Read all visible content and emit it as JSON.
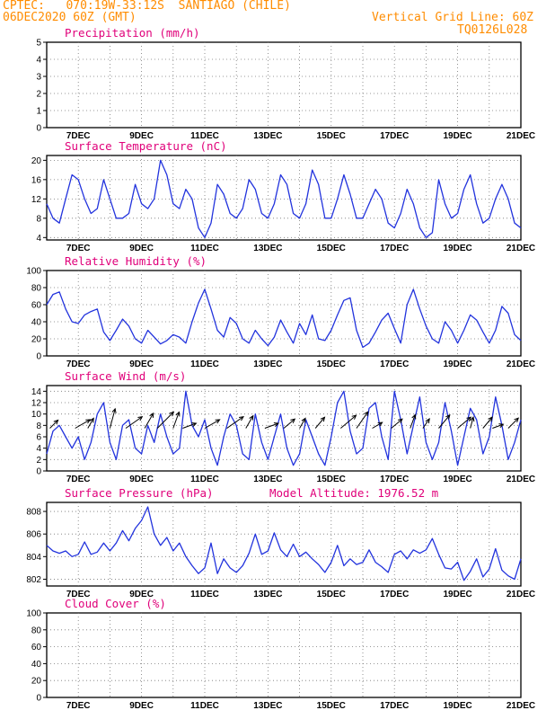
{
  "header": {
    "line1_left": "CPTEC:   070:19W-33:12S  SANTIAGO (CHILE)",
    "line2_left": "06DEC2020 60Z (GMT)",
    "line1_right": "Vertical Grid Line: 60Z",
    "line2_right": "TQ0126L028",
    "model_altitude": "Model Altitude: 1976.52 m"
  },
  "colors": {
    "line": "#2233dd",
    "header": "#ff8c00",
    "title": "#e0007a",
    "wind": "#000000"
  },
  "x_axis": {
    "start": "06DEC2020 00Z",
    "end": "21DEC2020 00Z",
    "tick_labels": [
      "7DEC",
      "9DEC",
      "11DEC",
      "13DEC",
      "15DEC",
      "17DEC",
      "19DEC",
      "21DEC"
    ]
  },
  "chart_data": [
    {
      "type": "line",
      "title": "Precipitation (mm/h)",
      "ylim": [
        0,
        5
      ],
      "yticks": [
        0,
        1,
        2,
        3,
        4,
        5
      ],
      "series": []
    },
    {
      "type": "line",
      "title": "Surface Temperature (nC)",
      "ylim": [
        3.5,
        21
      ],
      "yticks": [
        4,
        8,
        12,
        16,
        20
      ],
      "series": [
        {
          "x": [
            6.0,
            6.2,
            6.4,
            6.6,
            6.8,
            7.0,
            7.2,
            7.4,
            7.6,
            7.8,
            8.0,
            8.2,
            8.4,
            8.6,
            8.8,
            9.0,
            9.2,
            9.4,
            9.6,
            9.8,
            10.0,
            10.2,
            10.4,
            10.6,
            10.8,
            11.0,
            11.2,
            11.4,
            11.6,
            11.8,
            12.0,
            12.2,
            12.4,
            12.6,
            12.8,
            13.0,
            13.2,
            13.4,
            13.6,
            13.8,
            14.0,
            14.2,
            14.4,
            14.6,
            14.8,
            15.0,
            15.2,
            15.4,
            15.6,
            15.8,
            16.0,
            16.2,
            16.4,
            16.6,
            16.8,
            17.0,
            17.2,
            17.4,
            17.6,
            17.8,
            18.0,
            18.2,
            18.4,
            18.6,
            18.8,
            19.0,
            19.2,
            19.4,
            19.6,
            19.8,
            20.0,
            20.2,
            20.4,
            20.6,
            20.8,
            21.0
          ],
          "values": [
            11,
            8,
            7,
            12,
            17,
            16,
            12,
            9,
            10,
            16,
            12,
            8,
            8,
            9,
            15,
            11,
            10,
            12,
            20,
            17,
            11,
            10,
            14,
            12,
            6,
            4,
            7,
            15,
            13,
            9,
            8,
            10,
            16,
            14,
            9,
            8,
            11,
            17,
            15,
            9,
            8,
            11,
            18,
            15,
            8,
            8,
            12,
            17,
            13,
            8,
            8,
            11,
            14,
            12,
            7,
            6,
            9,
            14,
            11,
            6,
            4,
            5,
            16,
            11,
            8,
            9,
            14,
            17,
            11,
            7,
            8,
            12,
            15,
            12,
            7,
            6
          ]
        }
      ]
    },
    {
      "type": "line",
      "title": "Relative Humidity (%)",
      "ylim": [
        0,
        100
      ],
      "yticks": [
        0,
        20,
        40,
        60,
        80,
        100
      ],
      "series": [
        {
          "x": [
            6.0,
            6.2,
            6.4,
            6.6,
            6.8,
            7.0,
            7.2,
            7.4,
            7.6,
            7.8,
            8.0,
            8.2,
            8.4,
            8.6,
            8.8,
            9.0,
            9.2,
            9.4,
            9.6,
            9.8,
            10.0,
            10.2,
            10.4,
            10.6,
            10.8,
            11.0,
            11.2,
            11.4,
            11.6,
            11.8,
            12.0,
            12.2,
            12.4,
            12.6,
            12.8,
            13.0,
            13.2,
            13.4,
            13.6,
            13.8,
            14.0,
            14.2,
            14.4,
            14.6,
            14.8,
            15.0,
            15.2,
            15.4,
            15.6,
            15.8,
            16.0,
            16.2,
            16.4,
            16.6,
            16.8,
            17.0,
            17.2,
            17.4,
            17.6,
            17.8,
            18.0,
            18.2,
            18.4,
            18.6,
            18.8,
            19.0,
            19.2,
            19.4,
            19.6,
            19.8,
            20.0,
            20.2,
            20.4,
            20.6,
            20.8,
            21.0
          ],
          "values": [
            60,
            72,
            75,
            55,
            40,
            38,
            48,
            52,
            55,
            28,
            18,
            30,
            43,
            35,
            20,
            15,
            30,
            22,
            14,
            18,
            25,
            22,
            15,
            40,
            62,
            78,
            55,
            30,
            22,
            45,
            38,
            20,
            15,
            30,
            20,
            12,
            22,
            42,
            28,
            15,
            38,
            25,
            48,
            20,
            18,
            30,
            48,
            65,
            68,
            30,
            10,
            15,
            28,
            42,
            50,
            32,
            15,
            60,
            78,
            55,
            35,
            20,
            15,
            40,
            30,
            15,
            30,
            48,
            42,
            28,
            15,
            30,
            58,
            50,
            25,
            18
          ]
        }
      ]
    },
    {
      "type": "line",
      "title": "Surface Wind (m/s)",
      "ylim": [
        0,
        15
      ],
      "yticks": [
        0,
        2,
        4,
        6,
        8,
        10,
        12,
        14
      ],
      "series": [
        {
          "x": [
            6.0,
            6.2,
            6.4,
            6.6,
            6.8,
            7.0,
            7.2,
            7.4,
            7.6,
            7.8,
            8.0,
            8.2,
            8.4,
            8.6,
            8.8,
            9.0,
            9.2,
            9.4,
            9.6,
            9.8,
            10.0,
            10.2,
            10.4,
            10.6,
            10.8,
            11.0,
            11.2,
            11.4,
            11.6,
            11.8,
            12.0,
            12.2,
            12.4,
            12.6,
            12.8,
            13.0,
            13.2,
            13.4,
            13.6,
            13.8,
            14.0,
            14.2,
            14.4,
            14.6,
            14.8,
            15.0,
            15.2,
            15.4,
            15.6,
            15.8,
            16.0,
            16.2,
            16.4,
            16.6,
            16.8,
            17.0,
            17.2,
            17.4,
            17.6,
            17.8,
            18.0,
            18.2,
            18.4,
            18.6,
            18.8,
            19.0,
            19.2,
            19.4,
            19.6,
            19.8,
            20.0,
            20.2,
            20.4,
            20.6,
            20.8,
            21.0
          ],
          "values": [
            3,
            7,
            8,
            6,
            4,
            6,
            2,
            5,
            10,
            12,
            5,
            2,
            8,
            9,
            4,
            3,
            8,
            5,
            10,
            6,
            3,
            4,
            14,
            8,
            6,
            9,
            4,
            1,
            6,
            10,
            8,
            3,
            2,
            10,
            5,
            2,
            6,
            10,
            4,
            1,
            3,
            9,
            6,
            3,
            1,
            6,
            12,
            14,
            7,
            3,
            4,
            11,
            12,
            6,
            2,
            14,
            9,
            3,
            8,
            13,
            5,
            2,
            5,
            12,
            7,
            1,
            6,
            11,
            9,
            3,
            6,
            13,
            8,
            2,
            5,
            9
          ]
        }
      ],
      "wind_vectors": [
        {
          "day": 6.1,
          "v": 4,
          "dir": 225
        },
        {
          "day": 6.9,
          "v": 6,
          "dir": 240
        },
        {
          "day": 7.3,
          "v": 4,
          "dir": 210
        },
        {
          "day": 8.0,
          "v": 7,
          "dir": 195
        },
        {
          "day": 8.5,
          "v": 7,
          "dir": 235
        },
        {
          "day": 9.1,
          "v": 6,
          "dir": 210
        },
        {
          "day": 9.5,
          "v": 8,
          "dir": 225
        },
        {
          "day": 10.0,
          "v": 6,
          "dir": 200
        },
        {
          "day": 10.3,
          "v": 5,
          "dir": 250
        },
        {
          "day": 11.0,
          "v": 6,
          "dir": 240
        },
        {
          "day": 11.7,
          "v": 7,
          "dir": 235
        },
        {
          "day": 12.3,
          "v": 5,
          "dir": 210
        },
        {
          "day": 12.9,
          "v": 5,
          "dir": 250
        },
        {
          "day": 13.5,
          "v": 5,
          "dir": 230
        },
        {
          "day": 14.0,
          "v": 4,
          "dir": 210
        },
        {
          "day": 14.5,
          "v": 5,
          "dir": 220
        },
        {
          "day": 15.3,
          "v": 7,
          "dir": 230
        },
        {
          "day": 15.8,
          "v": 7,
          "dir": 215
        },
        {
          "day": 16.3,
          "v": 4,
          "dir": 240
        },
        {
          "day": 16.9,
          "v": 5,
          "dir": 230
        },
        {
          "day": 17.5,
          "v": 5,
          "dir": 200
        },
        {
          "day": 17.9,
          "v": 4,
          "dir": 215
        },
        {
          "day": 18.4,
          "v": 6,
          "dir": 220
        },
        {
          "day": 19.0,
          "v": 6,
          "dir": 230
        },
        {
          "day": 19.4,
          "v": 4,
          "dir": 195
        },
        {
          "day": 19.8,
          "v": 5,
          "dir": 220
        },
        {
          "day": 20.1,
          "v": 4,
          "dir": 250
        },
        {
          "day": 20.6,
          "v": 5,
          "dir": 225
        }
      ]
    },
    {
      "type": "line",
      "title": "Surface Pressure (hPa)",
      "ylim": [
        801.4,
        808.8
      ],
      "yticks": [
        802,
        804,
        806,
        808
      ],
      "series": [
        {
          "x": [
            6.0,
            6.2,
            6.4,
            6.6,
            6.8,
            7.0,
            7.2,
            7.4,
            7.6,
            7.8,
            8.0,
            8.2,
            8.4,
            8.6,
            8.8,
            9.0,
            9.2,
            9.4,
            9.6,
            9.8,
            10.0,
            10.2,
            10.4,
            10.6,
            10.8,
            11.0,
            11.2,
            11.4,
            11.6,
            11.8,
            12.0,
            12.2,
            12.4,
            12.6,
            12.8,
            13.0,
            13.2,
            13.4,
            13.6,
            13.8,
            14.0,
            14.2,
            14.4,
            14.6,
            14.8,
            15.0,
            15.2,
            15.4,
            15.6,
            15.8,
            16.0,
            16.2,
            16.4,
            16.6,
            16.8,
            17.0,
            17.2,
            17.4,
            17.6,
            17.8,
            18.0,
            18.2,
            18.4,
            18.6,
            18.8,
            19.0,
            19.2,
            19.4,
            19.6,
            19.8,
            20.0,
            20.2,
            20.4,
            20.6,
            20.8,
            21.0
          ],
          "values": [
            805.0,
            804.5,
            804.3,
            804.5,
            804.0,
            804.2,
            805.3,
            804.2,
            804.4,
            805.2,
            804.5,
            805.2,
            806.3,
            805.4,
            806.5,
            807.2,
            808.4,
            806.0,
            805.0,
            805.7,
            804.5,
            805.2,
            804.0,
            803.2,
            802.5,
            803.0,
            805.2,
            802.5,
            803.8,
            803.0,
            802.6,
            803.2,
            804.3,
            806.0,
            804.2,
            804.5,
            806.1,
            804.6,
            804.0,
            805.1,
            804.0,
            804.4,
            803.8,
            803.3,
            802.6,
            803.5,
            805.0,
            803.2,
            803.8,
            803.3,
            803.5,
            804.6,
            803.5,
            803.1,
            802.6,
            804.2,
            804.5,
            803.8,
            804.6,
            804.3,
            804.6,
            805.6,
            804.2,
            803.0,
            802.9,
            803.5,
            801.9,
            802.7,
            803.8,
            802.2,
            802.9,
            804.7,
            802.8,
            802.3,
            802.0,
            803.8
          ]
        }
      ]
    },
    {
      "type": "line",
      "title": "Cloud Cover (%)",
      "ylim": [
        0,
        100
      ],
      "yticks": [
        0,
        20,
        40,
        60,
        80,
        100
      ],
      "series": []
    }
  ]
}
